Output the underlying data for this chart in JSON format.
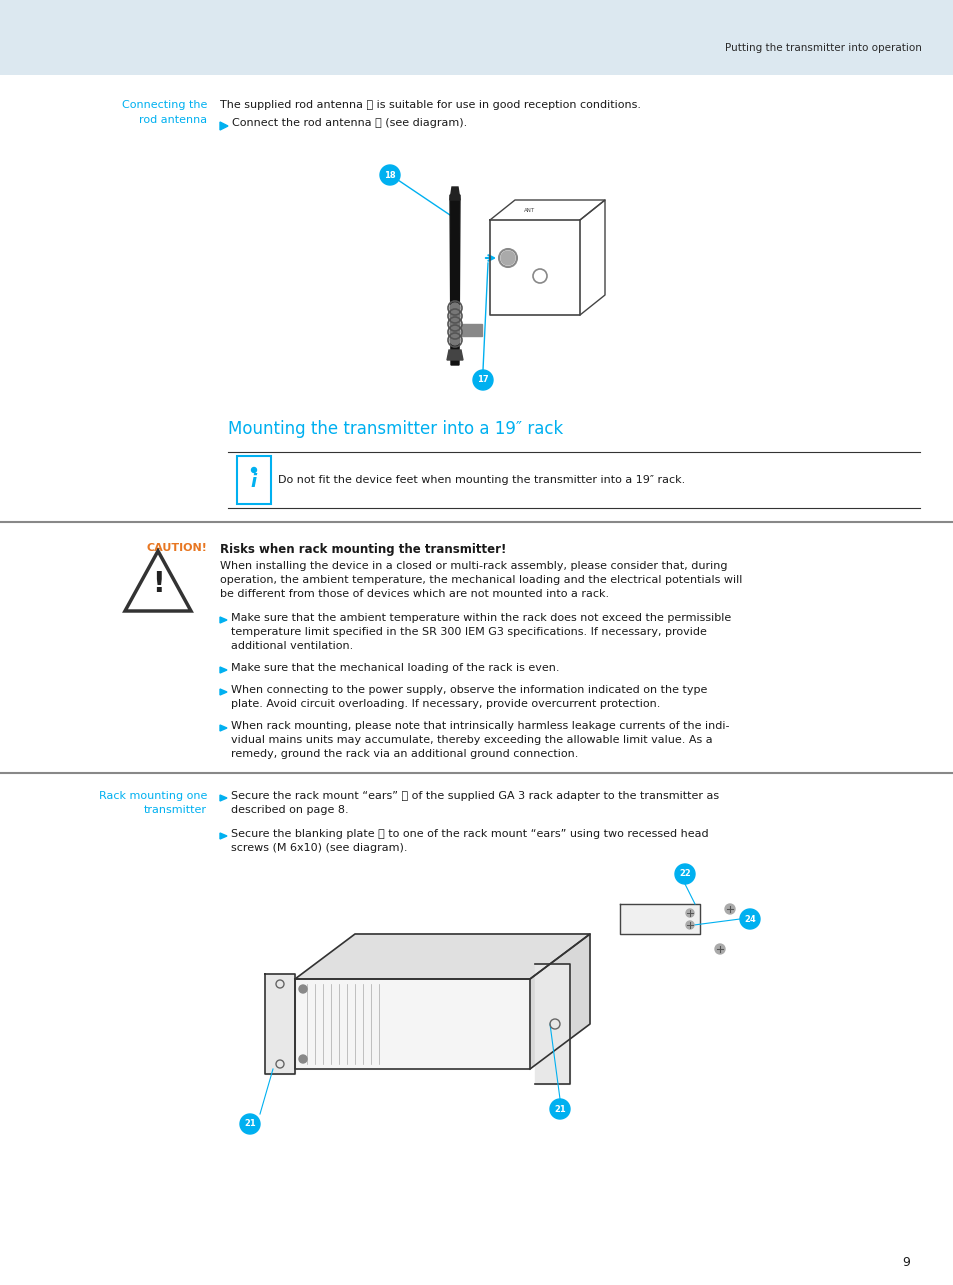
{
  "page_bg": "#ffffff",
  "header_bg": "#dce8f0",
  "header_text": "Putting the transmitter into operation",
  "header_text_color": "#2a2a2a",
  "cyan_color": "#00b0f0",
  "black_color": "#1a1a1a",
  "caution_color": "#e87722",
  "section_title": "Mounting the transmitter into a 19″ rack",
  "connecting_label_line1": "Connecting the",
  "connecting_label_line2": "rod antenna",
  "connecting_text1": "The supplied rod antenna Ⓑ is suitable for use in good reception conditions.",
  "connecting_text2": "Connect the rod antenna Ⓑ (see diagram).",
  "info_note": "Do not fit the device feet when mounting the transmitter into a 19″ rack.",
  "caution_label": "CAUTION!",
  "caution_title": "Risks when rack mounting the transmitter!",
  "caution_body_line1": "When installing the device in a closed or multi-rack assembly, please consider that, during",
  "caution_body_line2": "operation, the ambient temperature, the mechanical loading and the electrical potentials will",
  "caution_body_line3": "be different from those of devices which are not mounted into a rack.",
  "bullet1_line1": "Make sure that the ambient temperature within the rack does not exceed the permissible",
  "bullet1_line2": "temperature limit specified in the SR 300 IEM G3 specifications. If necessary, provide",
  "bullet1_line3": "additional ventilation.",
  "bullet2": "Make sure that the mechanical loading of the rack is even.",
  "bullet3_line1": "When connecting to the power supply, observe the information indicated on the type",
  "bullet3_line2": "plate. Avoid circuit overloading. If necessary, provide overcurrent protection.",
  "bullet4_line1": "When rack mounting, please note that intrinsically harmless leakage currents of the indi-",
  "bullet4_line2": "vidual mains units may accumulate, thereby exceeding the allowable limit value. As a",
  "bullet4_line3": "remedy, ground the rack via an additional ground connection.",
  "rack_label_line1": "Rack mounting one",
  "rack_label_line2": "transmitter",
  "rack_text1_line1": "Secure the rack mount “ears” ⓔ of the supplied GA 3 rack adapter to the transmitter as",
  "rack_text1_line2": "described on page 8.",
  "rack_text2_line1": "Secure the blanking plate ⓕ to one of the rack mount “ears” using two recessed head",
  "rack_text2_line2": "screws (M 6x10) (see diagram).",
  "page_number": "9"
}
